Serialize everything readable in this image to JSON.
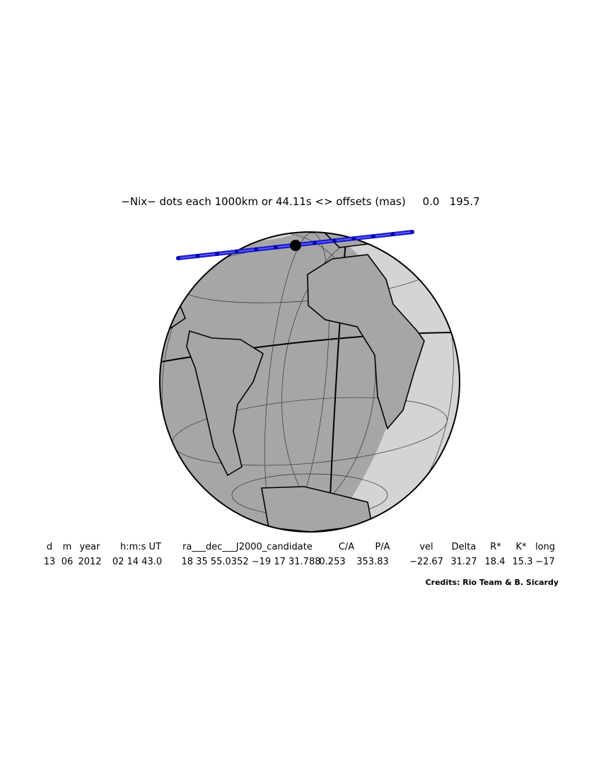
{
  "header": {
    "title": "−Nix− dots each 1000km or 44.11s <> offsets (mas)",
    "offsets": [
      "0.0",
      "195.7"
    ]
  },
  "table": {
    "headers": [
      "d",
      "m",
      "year",
      "h:m:s UT",
      "ra___dec___J2000_candidate",
      "C/A",
      "P/A",
      "vel",
      "Delta",
      "R*",
      "K*",
      "long"
    ],
    "rows": [
      [
        "13",
        "06",
        "2012",
        "02 14 43.0",
        "18 35 55.0352 −19 17 31.788",
        "0.253",
        "353.83",
        "−22.67",
        "31.27",
        "18.4",
        "15.3",
        "−17"
      ]
    ]
  },
  "credits": "Credits: Rio Team & B. Sicardy"
}
